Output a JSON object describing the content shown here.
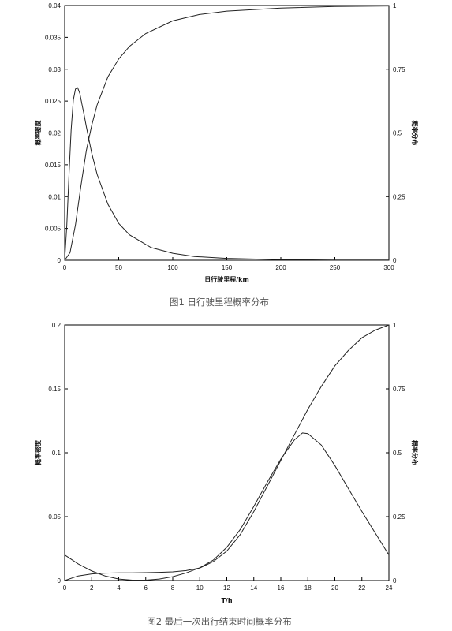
{
  "chart_data": [
    {
      "type": "line",
      "caption": "图1  日行驶里程概率分布",
      "xlabel": "日行驶里程/km",
      "ylabel": "概率密度",
      "y2label": "概率分布",
      "xlim": [
        0,
        300
      ],
      "ylim": [
        0,
        0.04
      ],
      "y2lim": [
        0,
        1
      ],
      "xticks": [
        "0",
        "50",
        "100",
        "150",
        "200",
        "250",
        "300"
      ],
      "yticks": [
        "0",
        "0.005",
        "0.01",
        "0.015",
        "0.02",
        "0.025",
        "0.03",
        "0.035",
        "0.04"
      ],
      "y2ticks": [
        "0",
        "0.25",
        "0.5",
        "0.75",
        "1"
      ],
      "grid": false,
      "series": [
        {
          "axis": "left",
          "x": [
            0,
            2,
            4,
            6,
            8,
            10,
            12,
            14,
            16,
            18,
            20,
            25,
            30,
            40,
            50,
            60,
            80,
            100,
            120,
            150,
            200,
            250,
            300
          ],
          "y": [
            0,
            0.0055,
            0.0135,
            0.0205,
            0.0252,
            0.0269,
            0.0271,
            0.0262,
            0.0245,
            0.0228,
            0.021,
            0.0168,
            0.0135,
            0.0088,
            0.0058,
            0.004,
            0.002,
            0.0011,
            0.0006,
            0.0003,
            0.0001,
            4e-05,
            2e-05
          ]
        },
        {
          "axis": "right",
          "x": [
            0,
            5,
            10,
            15,
            20,
            25,
            30,
            40,
            50,
            60,
            75,
            100,
            125,
            150,
            200,
            250,
            300
          ],
          "y": [
            0,
            0.03,
            0.14,
            0.29,
            0.43,
            0.53,
            0.61,
            0.72,
            0.79,
            0.84,
            0.89,
            0.94,
            0.965,
            0.978,
            0.99,
            0.996,
            0.998
          ]
        }
      ]
    },
    {
      "type": "line",
      "caption": "图2  最后一次出行结束时间概率分布",
      "xlabel": "T/h",
      "ylabel": "概率密度",
      "y2label": "概率分布",
      "xlim": [
        0,
        24
      ],
      "ylim": [
        0,
        0.2
      ],
      "y2lim": [
        0,
        1
      ],
      "xticks": [
        "0",
        "2",
        "4",
        "6",
        "8",
        "10",
        "12",
        "14",
        "16",
        "18",
        "20",
        "22",
        "24"
      ],
      "yticks": [
        "0",
        "0.05",
        "0.1",
        "0.15",
        "0.2"
      ],
      "y2ticks": [
        "0",
        "0.25",
        "0.5",
        "0.75",
        "1"
      ],
      "grid": false,
      "series": [
        {
          "axis": "left",
          "x": [
            0,
            1,
            2,
            3,
            4,
            5,
            6,
            7,
            8,
            9,
            10,
            11,
            12,
            13,
            14,
            15,
            16,
            17,
            17.6,
            18,
            19,
            20,
            21,
            22,
            23,
            24
          ],
          "y": [
            0.02,
            0.013,
            0.0075,
            0.0035,
            0.0012,
            0.0003,
            0.0003,
            0.0012,
            0.003,
            0.006,
            0.01,
            0.016,
            0.026,
            0.04,
            0.058,
            0.077,
            0.095,
            0.11,
            0.1155,
            0.115,
            0.106,
            0.09,
            0.072,
            0.054,
            0.037,
            0.02
          ]
        },
        {
          "axis": "right",
          "x": [
            0,
            1,
            2,
            3,
            4,
            5,
            6,
            7,
            8,
            9,
            10,
            11,
            12,
            13,
            14,
            15,
            16,
            17,
            18,
            19,
            20,
            21,
            22,
            23,
            24
          ],
          "y": [
            0,
            0.018,
            0.026,
            0.029,
            0.03,
            0.03,
            0.031,
            0.032,
            0.034,
            0.039,
            0.049,
            0.074,
            0.115,
            0.18,
            0.27,
            0.37,
            0.47,
            0.57,
            0.67,
            0.76,
            0.84,
            0.9,
            0.95,
            0.98,
            1.0
          ]
        }
      ]
    }
  ]
}
